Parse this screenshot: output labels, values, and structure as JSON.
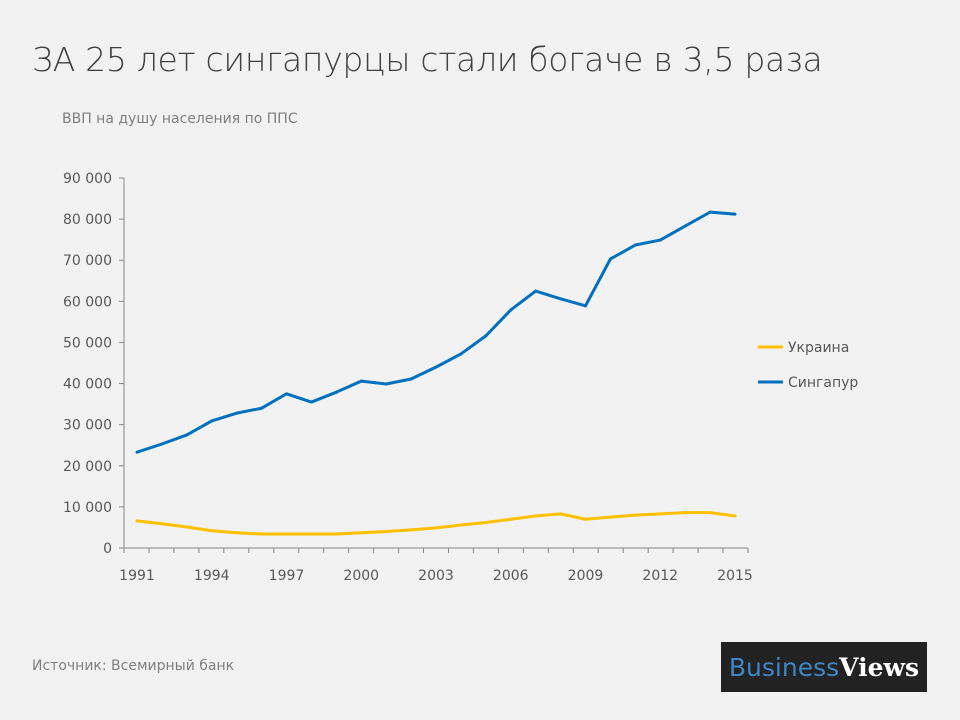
{
  "title": "ЗА 25 лет сингапурцы стали богаче в 3,5 раза",
  "subtitle": "ВВП на душу населения по ППС",
  "source": "Источник: Всемирный банк",
  "logo": {
    "part1": "Business",
    "part2": "Views"
  },
  "chart_data": {
    "type": "line",
    "title": "ЗА 25 лет сингапурцы стали богаче в 3,5 раза",
    "subtitle": "ВВП на душу населения по ППС",
    "x": [
      1991,
      1992,
      1993,
      1994,
      1995,
      1996,
      1997,
      1998,
      1999,
      2000,
      2001,
      2002,
      2003,
      2004,
      2005,
      2006,
      2007,
      2008,
      2009,
      2010,
      2011,
      2012,
      2013,
      2014,
      2015
    ],
    "x_tick_labels": [
      "1991",
      "1994",
      "1997",
      "2000",
      "2003",
      "2006",
      "2009",
      "2012",
      "2015"
    ],
    "y_tick_labels": [
      "0",
      "10 000",
      "20 000",
      "30 000",
      "40 000",
      "50 000",
      "60 000",
      "70 000",
      "80 000",
      "90 000"
    ],
    "ylim": [
      0,
      90000
    ],
    "grid": false,
    "legend_placement": "right",
    "series": [
      {
        "name": "Украина",
        "color": "#ffc000",
        "values": [
          6600,
          5900,
          5100,
          4200,
          3700,
          3400,
          3400,
          3400,
          3400,
          3700,
          4000,
          4400,
          4900,
          5600,
          6200,
          7000,
          7800,
          8300,
          7000,
          7500,
          8000,
          8300,
          8600,
          8600,
          7800
        ]
      },
      {
        "name": "Сингапур",
        "color": "#0070c0",
        "values": [
          23300,
          25300,
          27500,
          30900,
          32800,
          34000,
          37500,
          35500,
          37900,
          40600,
          39900,
          41100,
          44000,
          47200,
          51600,
          57900,
          62500,
          60600,
          58900,
          70300,
          73700,
          74900,
          78300,
          81700,
          81200
        ]
      }
    ]
  }
}
